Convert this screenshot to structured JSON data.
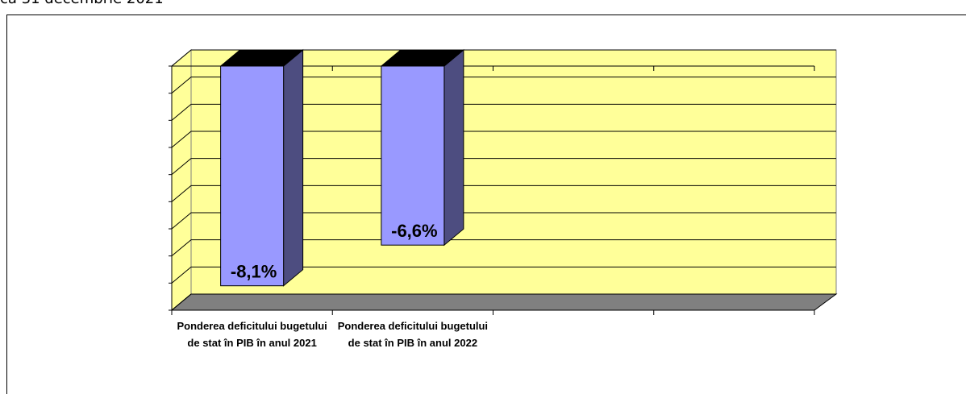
{
  "subtitle": "ca 31 decembrie 2021",
  "chart_data": {
    "type": "bar3d",
    "categories": [
      "Ponderea deficitului bugetului de stat în PIB în anul 2021",
      "Ponderea deficitului bugetului de stat în PIB în anul 2022",
      null,
      null
    ],
    "values": [
      -8.1,
      -6.6,
      null,
      null
    ],
    "value_labels": [
      "-8,1%",
      "-6,6%",
      null,
      null
    ],
    "color": "#9999ff",
    "ylim": [
      -9,
      0
    ],
    "yticks": [
      -9,
      -8,
      -7,
      -6,
      -5,
      -4,
      -3,
      -2,
      -1,
      0
    ],
    "grid": true
  }
}
